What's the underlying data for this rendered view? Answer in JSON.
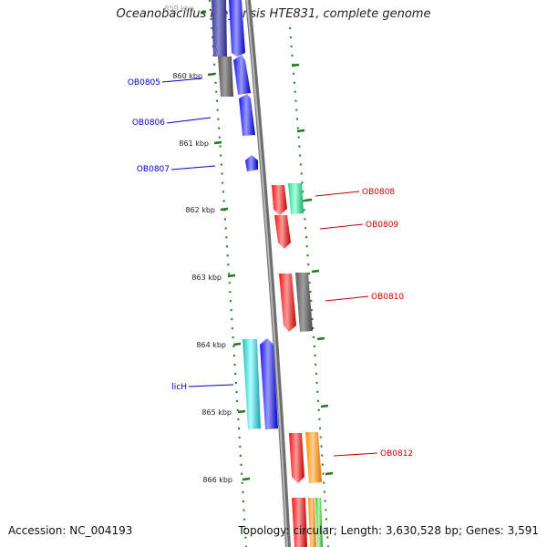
{
  "title": "Oceanobacillus iheyensis HTE831, complete genome",
  "footer": {
    "accession": "Accession: NC_004193",
    "summary": "Topology: circular; Length: 3,630,528 bp; Genes: 3,591"
  },
  "colors": {
    "backbone": "#8a8a8a",
    "dots": "#1f7a1f",
    "left_label": "#0000cc",
    "right_label": "#cc0000"
  },
  "kbp_labels": [
    "859 kbp",
    "860 kbp",
    "861 kbp",
    "862 kbp",
    "863 kbp",
    "864 kbp",
    "865 kbp",
    "866 kbp"
  ],
  "gene_labels": {
    "left": [
      "OB0805",
      "OB0806",
      "OB0807",
      "licH"
    ],
    "right": [
      "OB0808",
      "OB0809",
      "OB0810",
      "OB0812"
    ]
  }
}
